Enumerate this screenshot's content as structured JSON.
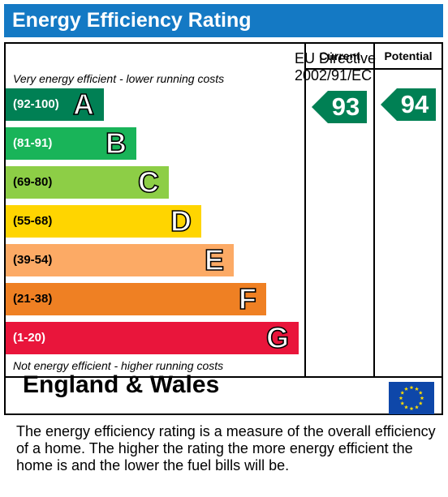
{
  "title": "Energy Efficiency Rating",
  "columns": {
    "current": "Current",
    "potential": "Potential"
  },
  "top_note": "Very energy efficient - lower running costs",
  "bottom_note": "Not energy efficient - higher running costs",
  "region": "England & Wales",
  "directive": {
    "line1": "EU Directive",
    "line2": "2002/91/EC"
  },
  "footer": "The energy efficiency rating is a measure of the overall efficiency of a home.  The higher the rating the more energy efficient the home is and the lower the fuel bills will be.",
  "chart_data": {
    "type": "bar",
    "categories": [
      "A",
      "B",
      "C",
      "D",
      "E",
      "F",
      "G"
    ],
    "ranges": [
      "(92-100)",
      "(81-91)",
      "(69-80)",
      "(55-68)",
      "(39-54)",
      "(21-38)",
      "(1-20)"
    ],
    "colors": [
      "#008054",
      "#19b459",
      "#8dce46",
      "#ffd500",
      "#fcaa65",
      "#ef8023",
      "#e9153b"
    ],
    "range_text_colors": [
      "#ffffff",
      "#ffffff",
      "#000000",
      "#000000",
      "#000000",
      "#000000",
      "#ffffff"
    ],
    "series": [
      {
        "name": "Current",
        "value": 93,
        "band": "A",
        "color": "#008054"
      },
      {
        "name": "Potential",
        "value": 94,
        "band": "A",
        "color": "#008054"
      }
    ]
  }
}
